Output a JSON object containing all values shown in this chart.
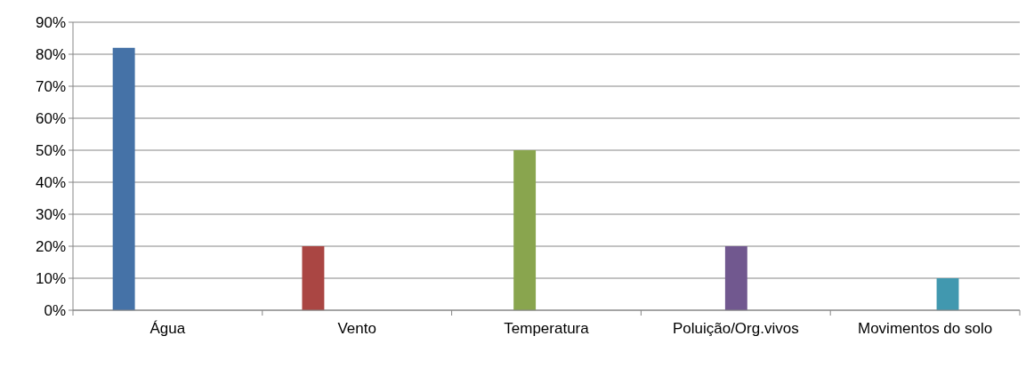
{
  "chart_data": {
    "type": "bar",
    "categories": [
      "Água",
      "Vento",
      "Temperatura",
      "Poluição/Org.vivos",
      "Movimentos do solo"
    ],
    "series": [
      {
        "colors": [
          "#4572a7",
          "#aa4643",
          null,
          null,
          null
        ],
        "values": [
          82,
          20,
          null,
          null,
          null
        ]
      },
      {
        "color": "#89a54e",
        "values": [
          null,
          null,
          50,
          null,
          null
        ]
      },
      {
        "color": "#71588f",
        "values": [
          null,
          null,
          null,
          20,
          null
        ]
      },
      {
        "color": "#4198af",
        "values": [
          null,
          null,
          null,
          null,
          10
        ]
      }
    ],
    "ylim": [
      0,
      90
    ],
    "yticks": [
      {
        "value": 0,
        "label": "0%"
      },
      {
        "value": 10,
        "label": "10%"
      },
      {
        "value": 20,
        "label": "20%"
      },
      {
        "value": 30,
        "label": "30%"
      },
      {
        "value": 40,
        "label": "40%"
      },
      {
        "value": 50,
        "label": "50%"
      },
      {
        "value": 60,
        "label": "60%"
      },
      {
        "value": 70,
        "label": "70%"
      },
      {
        "value": 80,
        "label": "80%"
      },
      {
        "value": 90,
        "label": "90%"
      }
    ],
    "grid": "y"
  }
}
